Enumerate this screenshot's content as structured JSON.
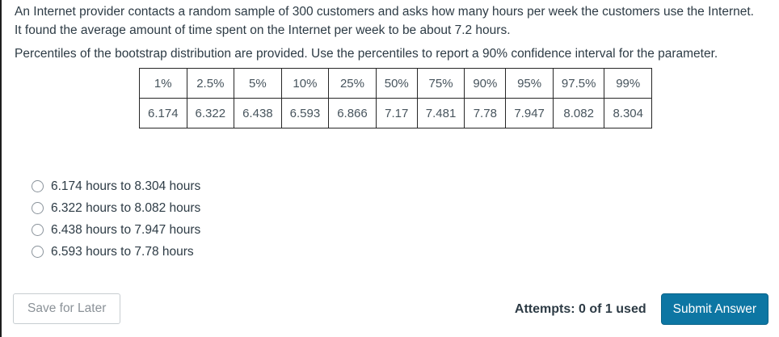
{
  "question": {
    "line1": "An Internet provider contacts a random sample of 300 customers and asks how many hours per week the customers use the Internet.",
    "line2": "It found the average amount of time spent on the Internet per week to be about 7.2 hours.",
    "instruction": "Percentiles of the bootstrap distribution are provided. Use the percentiles to report a 90% confidence interval for the parameter."
  },
  "percentile_table": {
    "headers": [
      "1%",
      "2.5%",
      "5%",
      "10%",
      "25%",
      "50%",
      "75%",
      "90%",
      "95%",
      "97.5%",
      "99%"
    ],
    "values": [
      "6.174",
      "6.322",
      "6.438",
      "6.593",
      "6.866",
      "7.17",
      "7.481",
      "7.78",
      "7.947",
      "8.082",
      "8.304"
    ]
  },
  "options": [
    {
      "label": "6.174 hours to 8.304 hours",
      "selected": false
    },
    {
      "label": "6.322 hours to 8.082 hours",
      "selected": false
    },
    {
      "label": "6.438 hours to 7.947 hours",
      "selected": false
    },
    {
      "label": "6.593 hours to 7.78 hours",
      "selected": false
    }
  ],
  "footer": {
    "save_label": "Save for Later",
    "attempts_label": "Attempts: 0 of 1 used",
    "submit_label": "Submit Answer"
  },
  "colors": {
    "text": "#2d3b45",
    "table_text": "#47545d",
    "table_border": "#262626",
    "submit_bg": "#0d76a3",
    "submit_text": "#ffffff",
    "save_border": "#c7cdd1",
    "save_text": "#8b9298"
  }
}
